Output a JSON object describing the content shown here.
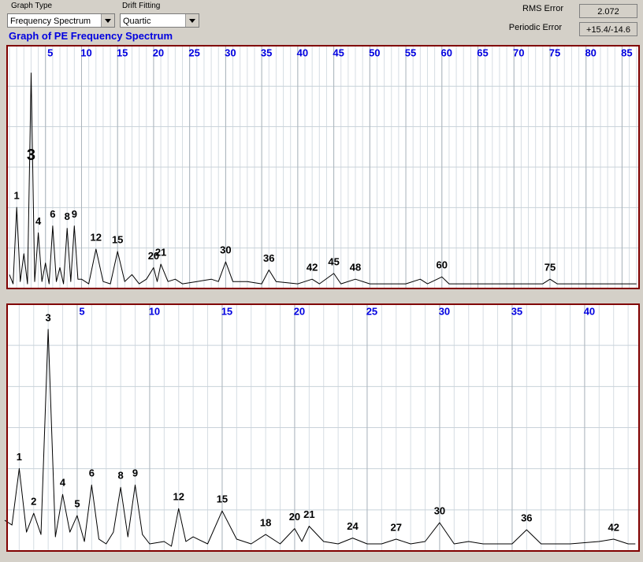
{
  "controls": {
    "graph_type_label": "Graph Type",
    "graph_type": "Frequency Spectrum",
    "drift_label": "Drift Fitting",
    "drift": "Quartic",
    "rms_label": "RMS Error",
    "rms_value": "2.072",
    "periodic_label": "Periodic Error",
    "periodic_value": "+15.4/-14.6"
  },
  "chart_data": [
    {
      "type": "line",
      "title": "Graph of PE Frequency Spectrum",
      "color": "#000000",
      "x": [
        0,
        0.5,
        1,
        1.5,
        2,
        2.5,
        3,
        3.5,
        4,
        4.5,
        5,
        5.5,
        6,
        6.5,
        7,
        7.5,
        8,
        8.5,
        9,
        9.5,
        10,
        11,
        12,
        13,
        14,
        15,
        16,
        17,
        18,
        19,
        20,
        20.5,
        21,
        22,
        23,
        24,
        26,
        28,
        29,
        30,
        31,
        33,
        35,
        36,
        37,
        40,
        42,
        43,
        45,
        46,
        48,
        50,
        55,
        57,
        58,
        60,
        61,
        65,
        70,
        74,
        75,
        76,
        80,
        85,
        87
      ],
      "values": [
        6,
        2,
        35,
        3,
        15,
        2,
        93,
        3,
        24,
        3,
        11,
        2,
        27,
        3,
        9,
        2,
        26,
        3,
        27,
        4,
        4,
        2,
        17,
        3,
        2,
        16,
        3,
        6,
        2,
        4,
        9,
        3,
        10.5,
        3,
        4,
        2,
        3,
        4,
        3,
        11.5,
        3,
        3,
        2,
        8,
        3,
        2,
        4,
        2,
        6.5,
        2,
        4,
        2,
        2,
        4,
        2,
        5,
        2,
        2,
        2,
        2,
        4,
        2,
        2,
        2,
        2
      ],
      "peak_labels": [
        1,
        3,
        4,
        6,
        8,
        9,
        12,
        15,
        20,
        21,
        30,
        36,
        42,
        45,
        48,
        60,
        75
      ],
      "xlim": [
        -0.22,
        87.25
      ],
      "ylim": [
        0,
        100
      ],
      "xticks": [
        5,
        10,
        15,
        20,
        25,
        30,
        35,
        40,
        45,
        50,
        55,
        60,
        65,
        70,
        75,
        80,
        85
      ],
      "grid": true
    },
    {
      "type": "line",
      "color": "#000000",
      "x": [
        0,
        0.5,
        1,
        1.5,
        2,
        2.5,
        3,
        3.5,
        4,
        4.5,
        5,
        5.5,
        6,
        6.5,
        7,
        7.5,
        8,
        8.5,
        9,
        9.5,
        10,
        11,
        11.5,
        12,
        12.5,
        13,
        14,
        15,
        16,
        17,
        18,
        19,
        20,
        20.5,
        21,
        22,
        23,
        24,
        25,
        26,
        27,
        28,
        29,
        30,
        31,
        32,
        33,
        35,
        36,
        37,
        39,
        41,
        42,
        43,
        43.5
      ],
      "values": [
        13,
        11,
        35,
        8,
        16,
        7,
        94,
        6,
        24,
        8,
        15,
        4,
        28,
        5,
        3,
        8,
        27,
        6,
        28,
        7,
        3,
        4,
        2,
        18,
        4,
        6,
        3,
        17,
        5,
        3,
        7,
        3,
        9.5,
        4,
        10.5,
        4,
        3,
        5.5,
        3,
        3,
        5,
        3,
        4,
        12,
        3,
        4,
        3,
        3,
        9,
        3,
        3,
        4,
        5,
        3,
        3
      ],
      "peak_labels": [
        1,
        2,
        3,
        4,
        5,
        6,
        8,
        9,
        12,
        15,
        18,
        20,
        21,
        24,
        27,
        30,
        36,
        42
      ],
      "xlim": [
        0.22,
        43.7
      ],
      "ylim": [
        0,
        100
      ],
      "xticks": [
        5,
        10,
        15,
        20,
        25,
        30,
        35,
        40
      ],
      "grid": true
    }
  ]
}
